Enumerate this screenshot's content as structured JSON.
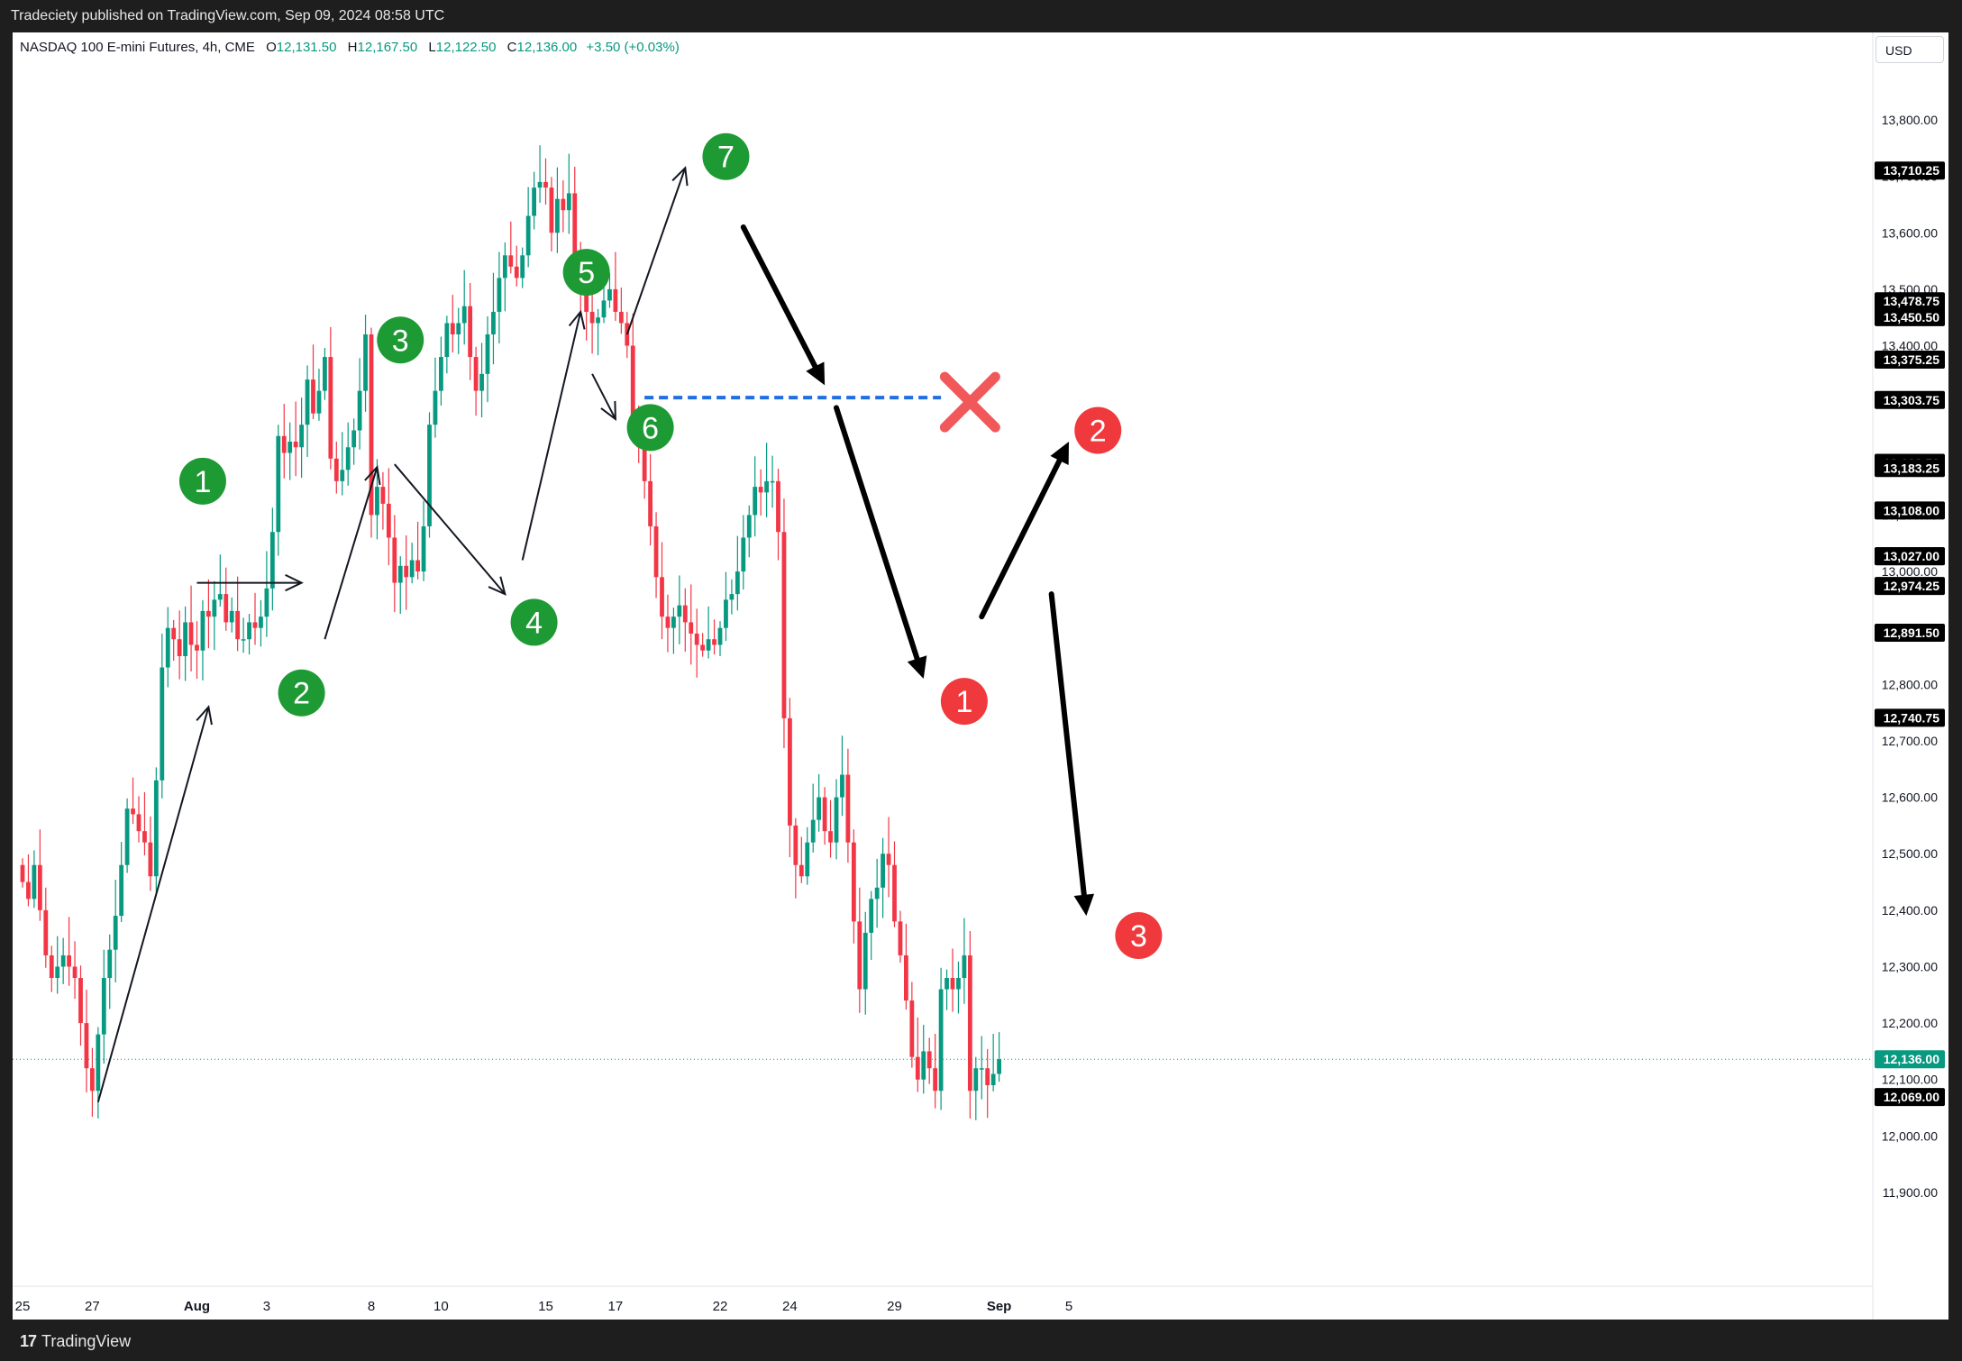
{
  "header": {
    "published": "Tradeciety published on TradingView.com, Sep 09, 2024 08:58 UTC"
  },
  "legend": {
    "symbol": "NASDAQ 100 E-mini Futures, 4h, CME",
    "o_label": "O",
    "o_value": "12,131.50",
    "h_label": "H",
    "h_value": "12,167.50",
    "l_label": "L",
    "l_value": "12,122.50",
    "c_label": "C",
    "c_value": "12,136.00",
    "change": "+3.50 (+0.03%)"
  },
  "currency": "USD",
  "footer": {
    "brand": "TradingView"
  },
  "colors": {
    "up": "#089981",
    "down": "#f23645",
    "bubble_green": "#1e9a34",
    "bubble_red": "#f0393c",
    "level_line": "#1f6fe0",
    "cross": "#f0585a"
  },
  "chart_data": {
    "type": "candlestick",
    "timeframe": "4h",
    "ylim": [
      11850,
      13900
    ],
    "y_ticks": [
      11900,
      12000,
      12100,
      12200,
      12300,
      12400,
      12500,
      12600,
      12700,
      12800,
      12900,
      13000,
      13100,
      13200,
      13300,
      13400,
      13500,
      13600,
      13700,
      13800
    ],
    "y_tick_labels": [
      "11,900.00",
      "12,000.00",
      "12,100.00",
      "12,200.00",
      "12,300.00",
      "12,400.00",
      "12,500.00",
      "12,600.00",
      "12,700.00",
      "12,800.00",
      "12,900.00",
      "13,000.00",
      "13,100.00",
      "13,200.00",
      "13,300.00",
      "13,400.00",
      "13,500.00",
      "13,600.00",
      "13,700.00",
      "13,800.00"
    ],
    "x_labels": [
      {
        "label": "25",
        "bar": 0
      },
      {
        "label": "27",
        "bar": 12
      },
      {
        "label": "Aug",
        "bar": 30
      },
      {
        "label": "3",
        "bar": 42
      },
      {
        "label": "8",
        "bar": 60
      },
      {
        "label": "10",
        "bar": 72
      },
      {
        "label": "15",
        "bar": 90
      },
      {
        "label": "17",
        "bar": 102
      },
      {
        "label": "22",
        "bar": 120
      },
      {
        "label": "24",
        "bar": 132
      },
      {
        "label": "29",
        "bar": 150
      },
      {
        "label": "Sep",
        "bar": 168
      },
      {
        "label": "5",
        "bar": 180
      }
    ],
    "price_tags": [
      {
        "value": 13710.25,
        "label": "13,710.25"
      },
      {
        "value": 13478.75,
        "label": "13,478.75"
      },
      {
        "value": 13450.5,
        "label": "13,450.50"
      },
      {
        "value": 13375.25,
        "label": "13,375.25"
      },
      {
        "value": 13303.75,
        "label": "13,303.75"
      },
      {
        "value": 13192.5,
        "label": "13,192.50"
      },
      {
        "value": 13183.25,
        "label": "13,183.25"
      },
      {
        "value": 13108.0,
        "label": "13,108.00"
      },
      {
        "value": 13027.0,
        "label": "13,027.00"
      },
      {
        "value": 13027.0,
        "label": "13,027.00"
      },
      {
        "value": 12974.25,
        "label": "12,974.25"
      },
      {
        "value": 12891.5,
        "label": "12,891.50"
      },
      {
        "value": 12740.75,
        "label": "12,740.75"
      },
      {
        "value": 12069.0,
        "label": "12,069.00"
      }
    ],
    "last_price": {
      "value": 12136.0,
      "label": "12,136.00"
    },
    "closes": [
      12450,
      12420,
      12480,
      12400,
      12320,
      12280,
      12300,
      12320,
      12300,
      12280,
      12200,
      12120,
      12080,
      12180,
      12280,
      12330,
      12390,
      12480,
      12580,
      12570,
      12540,
      12520,
      12460,
      12630,
      12830,
      12900,
      12880,
      12850,
      12910,
      12870,
      12860,
      12930,
      12920,
      12950,
      12960,
      12910,
      12930,
      12880,
      12880,
      12910,
      12900,
      12920,
      12970,
      13070,
      13240,
      13210,
      13230,
      13220,
      13260,
      13340,
      13280,
      13320,
      13380,
      13200,
      13160,
      13180,
      13220,
      13250,
      13320,
      13420,
      13100,
      13150,
      13120,
      13060,
      12980,
      13010,
      12990,
      13020,
      13000,
      13080,
      13260,
      13320,
      13380,
      13440,
      13420,
      13440,
      13470,
      13380,
      13320,
      13350,
      13420,
      13460,
      13520,
      13560,
      13540,
      13520,
      13560,
      13630,
      13680,
      13690,
      13680,
      13600,
      13660,
      13640,
      13670,
      13560,
      13500,
      13460,
      13440,
      13450,
      13480,
      13500,
      13460,
      13440,
      13400,
      13260,
      13220,
      13160,
      13080,
      12990,
      12920,
      12900,
      12920,
      12940,
      12910,
      12890,
      12870,
      12860,
      12880,
      12870,
      12900,
      12950,
      12960,
      13000,
      13060,
      13100,
      13150,
      13140,
      13160,
      13160,
      13070,
      12740,
      12550,
      12480,
      12460,
      12520,
      12560,
      12600,
      12540,
      12520,
      12600,
      12640,
      12520,
      12380,
      12260,
      12360,
      12420,
      12440,
      12500,
      12480,
      12380,
      12320,
      12240,
      12140,
      12100,
      12150,
      12120,
      12080,
      12260,
      12280,
      12260,
      12280,
      12320,
      12080,
      12120,
      12120,
      12090,
      12110,
      12136
    ],
    "annotations": {
      "bubbles": [
        {
          "label": "1",
          "color": "green",
          "bar": 31,
          "price": 13160
        },
        {
          "label": "2",
          "color": "green",
          "bar": 48,
          "price": 12785
        },
        {
          "label": "3",
          "color": "green",
          "bar": 65,
          "price": 13410
        },
        {
          "label": "4",
          "color": "green",
          "bar": 88,
          "price": 12910
        },
        {
          "label": "5",
          "color": "green",
          "bar": 97,
          "price": 13530
        },
        {
          "label": "6",
          "color": "green",
          "bar": 108,
          "price": 13255
        },
        {
          "label": "7",
          "color": "green",
          "bar": 121,
          "price": 13735
        },
        {
          "label": "1",
          "color": "red",
          "bar": 162,
          "price": 12770
        },
        {
          "label": "2",
          "color": "red",
          "bar": 185,
          "price": 13250
        },
        {
          "label": "3",
          "color": "red",
          "bar": 192,
          "price": 12355
        }
      ],
      "level_line": {
        "price": 13308,
        "from_bar": 107,
        "to_bar": 158
      },
      "cross": {
        "bar": 163,
        "price": 13300
      },
      "thin_arrows": [
        [
          13,
          12060,
          32,
          12760
        ],
        [
          30,
          12980,
          48,
          12980
        ],
        [
          52,
          12880,
          61,
          13185
        ],
        [
          64,
          13190,
          83,
          12960
        ],
        [
          86,
          13020,
          96,
          13460
        ],
        [
          98,
          13350,
          102,
          13270
        ],
        [
          104,
          13420,
          114,
          13715
        ]
      ],
      "thick_arrows": [
        [
          124,
          13610,
          138,
          13330
        ],
        [
          140,
          13290,
          155,
          12810
        ],
        [
          165,
          12920,
          180,
          13230
        ],
        [
          177,
          12960,
          183,
          12390
        ]
      ]
    }
  }
}
